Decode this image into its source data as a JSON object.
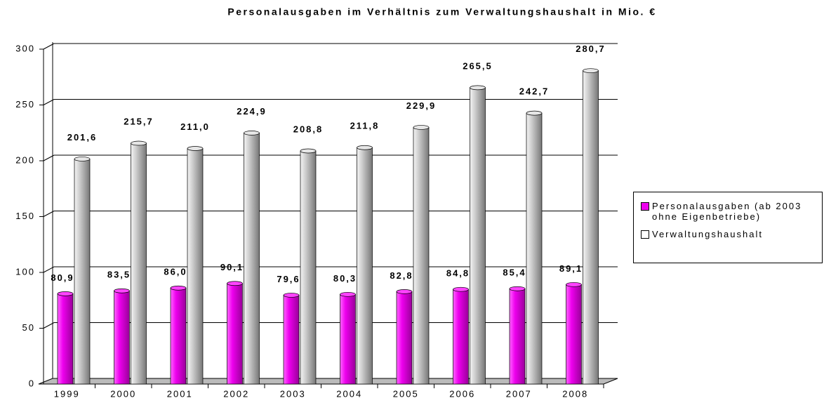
{
  "chart_data": {
    "type": "bar",
    "title": "Personalausgaben im Verhältnis zum Verwaltungshaushalt in Mio. €",
    "categories": [
      "1999",
      "2000",
      "2001",
      "2002",
      "2003",
      "2004",
      "2005",
      "2006",
      "2007",
      "2008"
    ],
    "series": [
      {
        "name": "Personalausgaben (ab 2003 ohne Eigenbetriebe)",
        "color": "#ee00ee",
        "values": [
          80.9,
          83.5,
          86.0,
          90.1,
          79.6,
          80.3,
          82.8,
          84.8,
          85.4,
          89.1
        ],
        "value_labels": [
          "80,9",
          "83,5",
          "86,0",
          "90,1",
          "79,6",
          "80,3",
          "82,8",
          "84,8",
          "85,4",
          "89,1"
        ]
      },
      {
        "name": "Verwaltungshaushalt",
        "color": "#cccccc",
        "values": [
          201.6,
          215.7,
          211.0,
          224.9,
          208.8,
          211.8,
          229.9,
          265.5,
          242.7,
          280.7
        ],
        "value_labels": [
          "201,6",
          "215,7",
          "211,0",
          "224,9",
          "208,8",
          "211,8",
          "229,9",
          "265,5",
          "242,7",
          "280,7"
        ]
      }
    ],
    "ylim": [
      0,
      300
    ],
    "yticks": [
      0,
      50,
      100,
      150,
      200,
      250,
      300
    ],
    "grid": true,
    "legend": "right"
  }
}
